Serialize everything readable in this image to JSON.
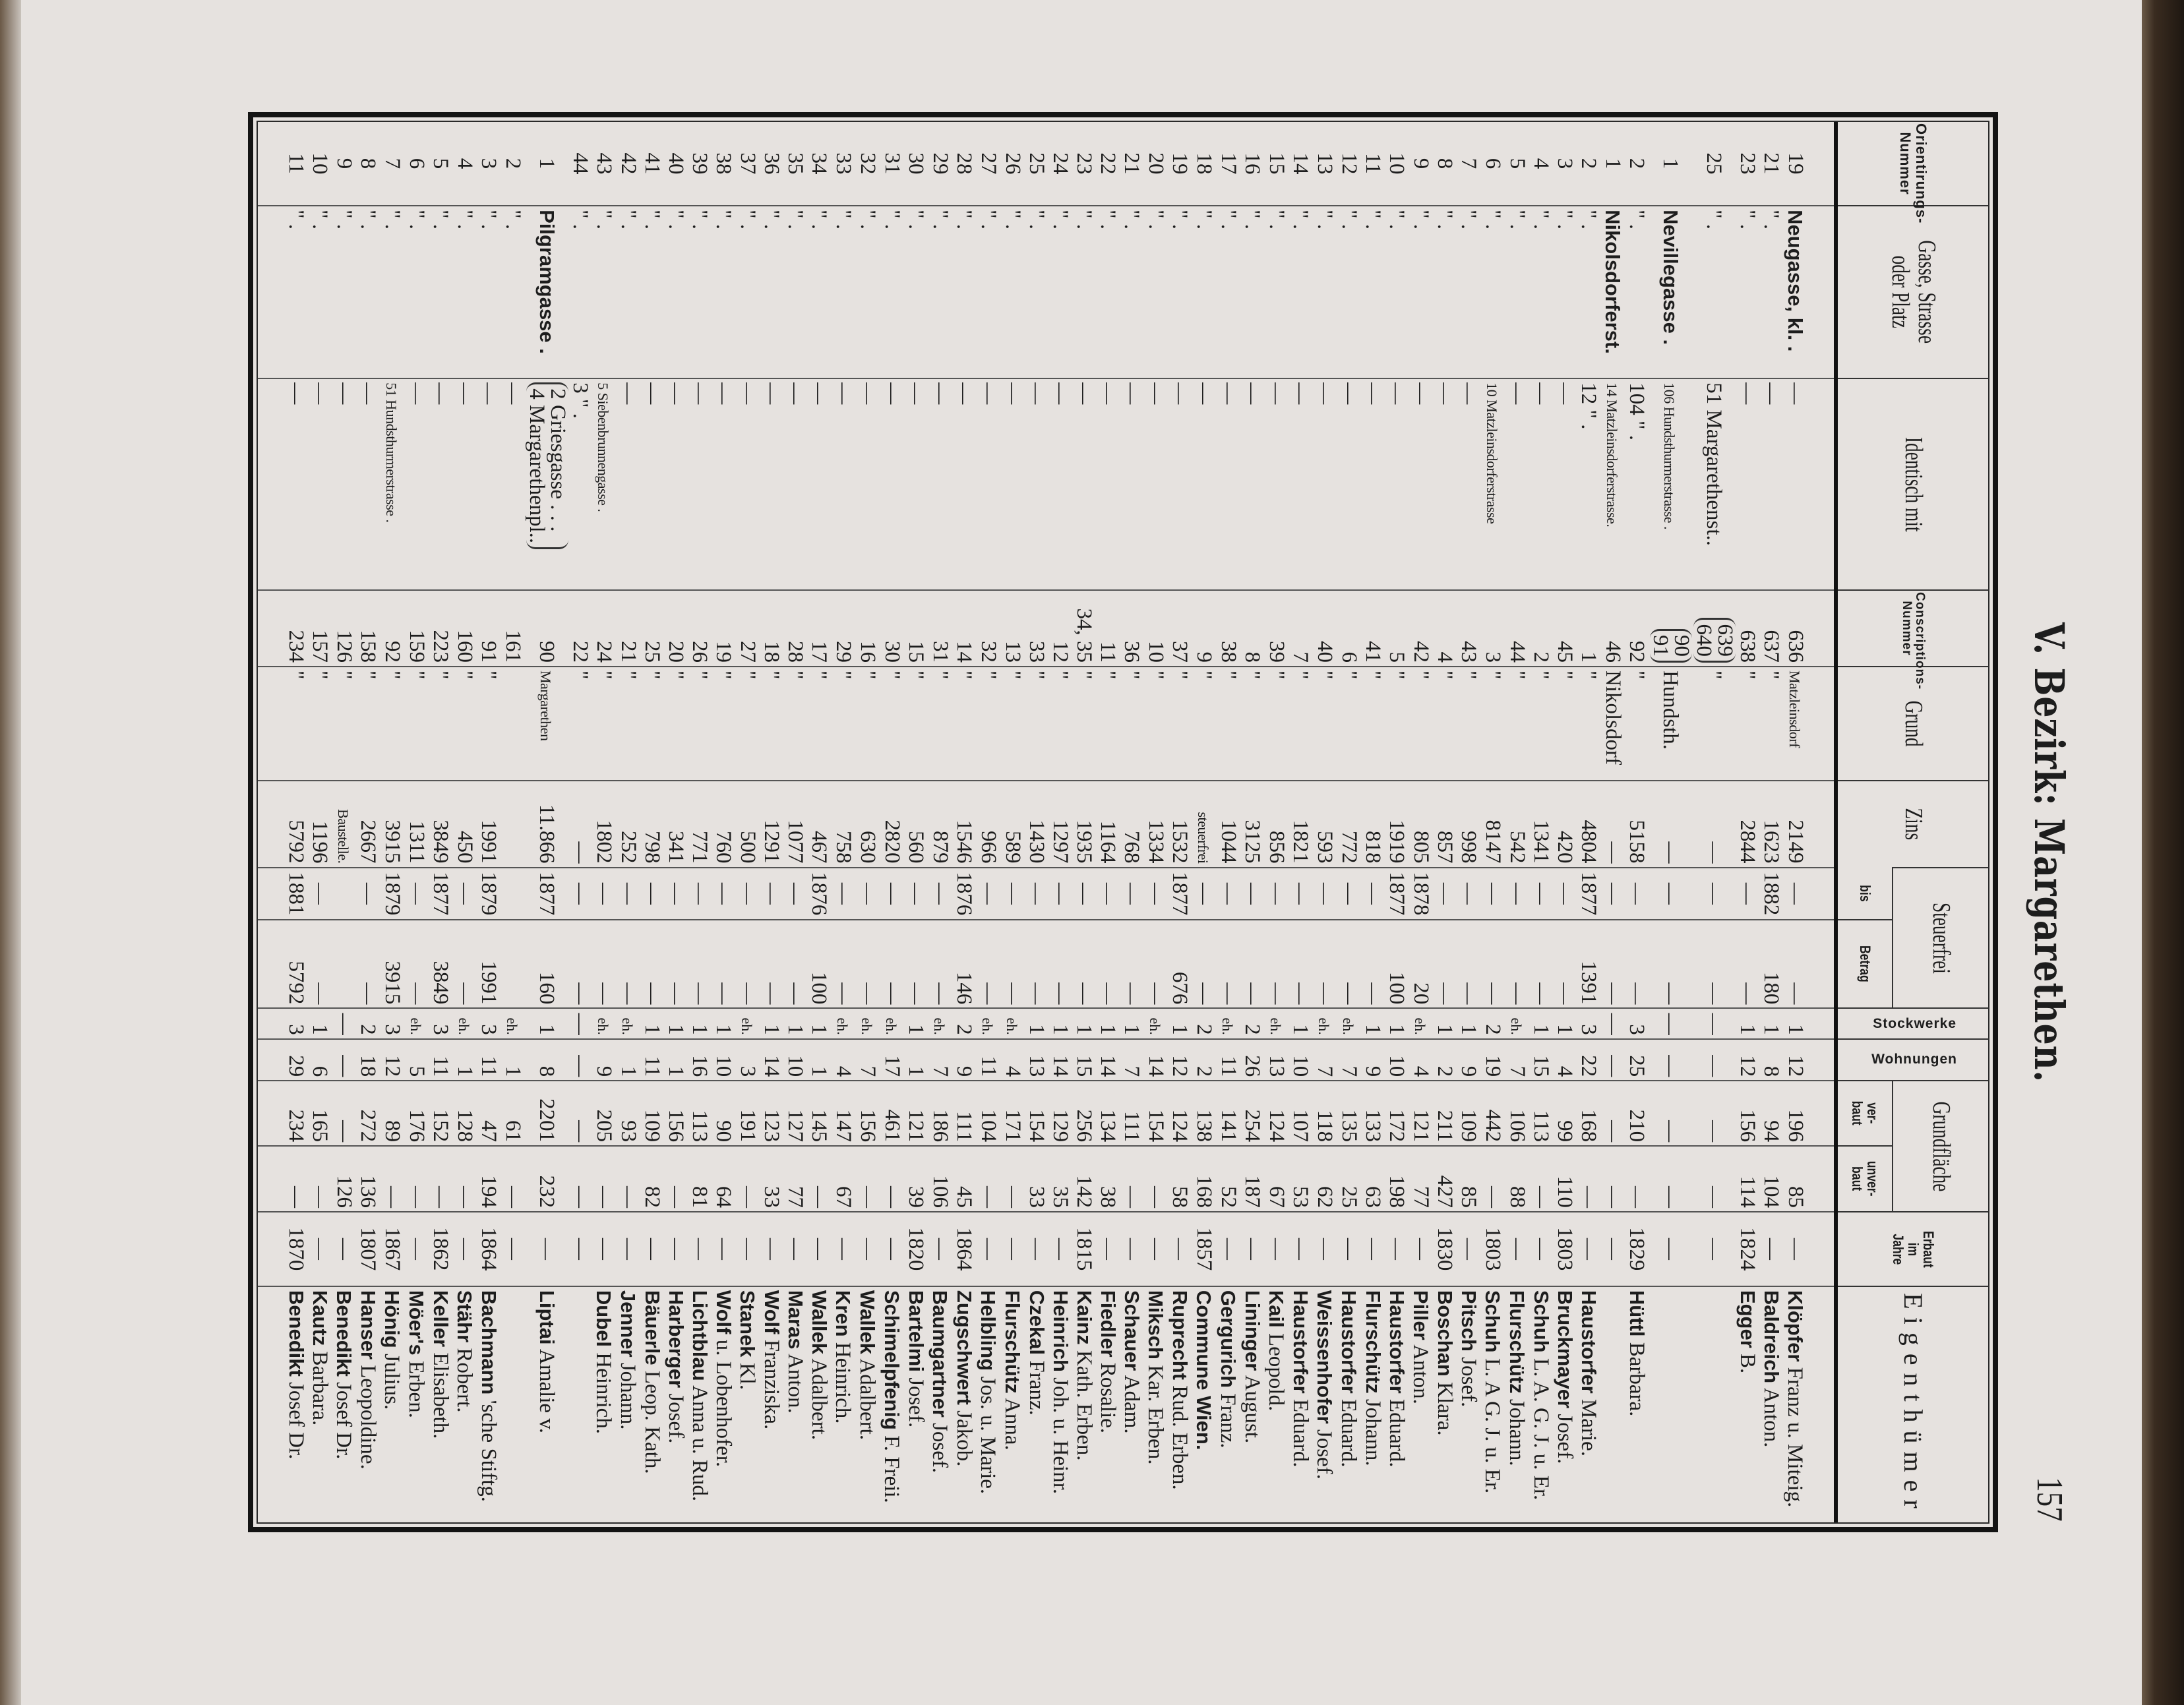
{
  "title": "V. Bezirk: Margarethen.",
  "page_number": "157",
  "header": {
    "orient": "Orientirungs-\nNummer",
    "gasse": "Gasse, Strasse\noder Platz",
    "identisch": "Identisch mit",
    "conscr": "Conscriptions-\nNummer",
    "grund": "Grund",
    "zins": "Zins",
    "steuerfrei": "Steuerfrei",
    "bis": "bis",
    "betrag": "Betrag",
    "stockwerke": "Stockwerke",
    "wohnungen": "Wohnungen",
    "grundflaeche": "Grundfläche",
    "verbaut": "ver-\nbaut",
    "unverbaut": "unver-\nbaut",
    "erbaut": "Erbaut\nim\nJahre",
    "eigenthuemer": "Eigenthümer"
  },
  "rows": [
    [
      "19",
      "Neugasse, kl. .",
      "—",
      "636",
      "Matzleinsdorf",
      "2149",
      "—",
      "—",
      "1",
      "12",
      "196",
      "85",
      "—",
      "Klöpfer",
      "Franz u. Miteig."
    ],
    [
      "21",
      "\" .",
      "—",
      "637",
      "\"",
      "1623",
      "1882",
      "180",
      "1",
      "8",
      "94",
      "104",
      "—",
      "Baldreich",
      "Anton."
    ],
    [
      "23",
      "\" .",
      "—",
      "638",
      "\"",
      "2844",
      "—",
      "—",
      "1",
      "12",
      "156",
      "114",
      "1824",
      "Egger",
      "B."
    ],
    [
      "25",
      "\" .",
      "51 Margarethenst..",
      [
        "639",
        "640"
      ],
      "\"",
      "—",
      "—",
      "—",
      "—",
      "—",
      "—",
      "—",
      "—",
      "",
      ""
    ],
    [
      "1",
      "Nevillegasse .",
      "106 Hundsthurmerstrasse .",
      [
        "90",
        "91"
      ],
      "Hundsth.",
      "—",
      "—",
      "—",
      "—",
      "—",
      "—",
      "—",
      "—",
      "",
      ""
    ],
    [
      "2",
      "\" .",
      "104 \" .",
      "92",
      "\"",
      "5158",
      "—",
      "—",
      "3",
      "25",
      "210",
      "—",
      "1829",
      "Hüttl",
      "Barbara."
    ],
    [
      "1",
      "Nikolsdorferst.",
      "14 Matzleinsdorferstrasse.",
      "46",
      "Nikolsdorf",
      "—",
      "—",
      "—",
      "—",
      "—",
      "—",
      "—",
      "—",
      "",
      ""
    ],
    [
      "2",
      "\" .",
      "12 \" .",
      "1",
      "\"",
      "4804",
      "1877",
      "1391",
      "3",
      "22",
      "168",
      "—",
      "—",
      "Haustorfer",
      "Marie."
    ],
    [
      "3",
      "\" .",
      "—",
      "45",
      "\"",
      "420",
      "—",
      "—",
      "1",
      "4",
      "99",
      "110",
      "1803",
      "Bruckmayer",
      "Josef."
    ],
    [
      "4",
      "\" .",
      "—",
      "2",
      "\"",
      "1341",
      "—",
      "—",
      "1",
      "15",
      "113",
      "—",
      "—",
      "Schuh",
      "L. A. G. J. u. Er."
    ],
    [
      "5",
      "\" .",
      "—",
      "44",
      "\"",
      "542",
      "—",
      "—",
      "eh.",
      "7",
      "106",
      "88",
      "—",
      "Flurschütz",
      "Johann."
    ],
    [
      "6",
      "\" .",
      "10 Matzleinsdorferstrasse",
      "3",
      "\"",
      "8147",
      "—",
      "—",
      "2",
      "19",
      "442",
      "—",
      "1803",
      "Schuh",
      "L. A G. J. u. Er."
    ],
    [
      "7",
      "\" .",
      "—",
      "43",
      "\"",
      "998",
      "—",
      "—",
      "1",
      "9",
      "109",
      "85",
      "—",
      "Pitsch",
      "Josef."
    ],
    [
      "8",
      "\" .",
      "—",
      "4",
      "\"",
      "857",
      "—",
      "—",
      "1",
      "2",
      "211",
      "427",
      "1830",
      "Boschan",
      "Klara."
    ],
    [
      "9",
      "\" .",
      "—",
      "42",
      "\"",
      "805",
      "1878",
      "20",
      "eh.",
      "4",
      "121",
      "77",
      "—",
      "Piller",
      "Anton."
    ],
    [
      "10",
      "\" .",
      "—",
      "5",
      "\"",
      "1919",
      "1877",
      "100",
      "1",
      "10",
      "172",
      "198",
      "—",
      "Haustorfer",
      "Eduard."
    ],
    [
      "11",
      "\" .",
      "—",
      "41",
      "\"",
      "818",
      "—",
      "—",
      "1",
      "9",
      "133",
      "63",
      "—",
      "Flurschütz",
      "Johann."
    ],
    [
      "12",
      "\" .",
      "—",
      "6",
      "\"",
      "772",
      "—",
      "—",
      "eh.",
      "7",
      "135",
      "25",
      "—",
      "Haustorfer",
      "Eduard."
    ],
    [
      "13",
      "\" .",
      "—",
      "40",
      "\"",
      "593",
      "—",
      "—",
      "eh.",
      "7",
      "118",
      "62",
      "—",
      "Weissenhofer",
      "Josef."
    ],
    [
      "14",
      "\" .",
      "—",
      "7",
      "\"",
      "1821",
      "—",
      "—",
      "1",
      "10",
      "107",
      "53",
      "—",
      "Haustorfer",
      "Eduard."
    ],
    [
      "15",
      "\" .",
      "—",
      "39",
      "\"",
      "856",
      "—",
      "—",
      "eh.",
      "13",
      "124",
      "67",
      "—",
      "Kail",
      "Leopold."
    ],
    [
      "16",
      "\" .",
      "—",
      "8",
      "\"",
      "3125",
      "—",
      "—",
      "2",
      "26",
      "254",
      "187",
      "—",
      "Lininger",
      "August."
    ],
    [
      "17",
      "\" .",
      "—",
      "38",
      "\"",
      "1044",
      "—",
      "—",
      "eh.",
      "11",
      "141",
      "52",
      "—",
      "Gergurich",
      "Franz."
    ],
    [
      "18",
      "\" .",
      "—",
      "9",
      "\"",
      "steuerfrei",
      "—",
      "—",
      "2",
      "2",
      "138",
      "168",
      "1857",
      "Commune Wien.",
      ""
    ],
    [
      "19",
      "\" .",
      "—",
      "37",
      "\"",
      "1532",
      "1877",
      "676",
      "1",
      "12",
      "124",
      "58",
      "—",
      "Ruprecht",
      "Rud. Erben."
    ],
    [
      "20",
      "\" .",
      "—",
      "10",
      "\"",
      "1334",
      "—",
      "—",
      "eh.",
      "14",
      "154",
      "—",
      "—",
      "Miksch",
      "Kar. Erben."
    ],
    [
      "21",
      "\" .",
      "—",
      "36",
      "\"",
      "768",
      "—",
      "—",
      "1",
      "7",
      "111",
      "—",
      "—",
      "Schauer",
      "Adam."
    ],
    [
      "22",
      "\" .",
      "—",
      "11",
      "\"",
      "1164",
      "—",
      "—",
      "1",
      "14",
      "134",
      "38",
      "—",
      "Fiedler",
      "Rosalie."
    ],
    [
      "23",
      "\" .",
      "—",
      "34, 35",
      "\"",
      "1935",
      "—",
      "—",
      "1",
      "15",
      "256",
      "142",
      "1815",
      "Kainz",
      "Kath. Erben."
    ],
    [
      "24",
      "\" .",
      "—",
      "12",
      "\"",
      "1297",
      "—",
      "—",
      "1",
      "14",
      "129",
      "35",
      "—",
      "Heinrich",
      "Joh. u. Heinr."
    ],
    [
      "25",
      "\" .",
      "—",
      "33",
      "\"",
      "1430",
      "—",
      "—",
      "1",
      "13",
      "154",
      "33",
      "—",
      "Czekal",
      "Franz."
    ],
    [
      "26",
      "\" .",
      "—",
      "13",
      "\"",
      "589",
      "—",
      "—",
      "eh.",
      "4",
      "171",
      "—",
      "—",
      "Flurschütz",
      "Anna."
    ],
    [
      "27",
      "\" .",
      "—",
      "32",
      "\"",
      "966",
      "—",
      "—",
      "eh.",
      "11",
      "104",
      "—",
      "—",
      "Helbling",
      "Jos. u. Marie."
    ],
    [
      "28",
      "\" .",
      "—",
      "14",
      "\"",
      "1546",
      "1876",
      "146",
      "2",
      "9",
      "111",
      "45",
      "1864",
      "Zugschwert",
      "Jakob."
    ],
    [
      "29",
      "\" .",
      "—",
      "31",
      "\"",
      "879",
      "—",
      "—",
      "eh.",
      "7",
      "186",
      "106",
      "—",
      "Baumgartner",
      "Josef."
    ],
    [
      "30",
      "\" .",
      "—",
      "15",
      "\"",
      "560",
      "—",
      "—",
      "1",
      "1",
      "121",
      "39",
      "1820",
      "Bartelmi",
      "Josef."
    ],
    [
      "31",
      "\" .",
      "—",
      "30",
      "\"",
      "2820",
      "—",
      "—",
      "eh.",
      "17",
      "461",
      "—",
      "—",
      "Schimelpfenig",
      "F. Freii."
    ],
    [
      "32",
      "\" .",
      "—",
      "16",
      "\"",
      "630",
      "—",
      "—",
      "eh.",
      "7",
      "156",
      "—",
      "—",
      "Wallek",
      "Adalbert."
    ],
    [
      "33",
      "\" .",
      "—",
      "29",
      "\"",
      "758",
      "—",
      "—",
      "eh.",
      "4",
      "147",
      "67",
      "—",
      "Kren",
      "Heinrich."
    ],
    [
      "34",
      "\" .",
      "—",
      "17",
      "\"",
      "467",
      "1876",
      "100",
      "1",
      "1",
      "145",
      "—",
      "—",
      "Wallek",
      "Adalbert."
    ],
    [
      "35",
      "\" .",
      "—",
      "28",
      "\"",
      "1077",
      "—",
      "—",
      "1",
      "10",
      "127",
      "77",
      "—",
      "Maras",
      "Anton."
    ],
    [
      "36",
      "\" .",
      "—",
      "18",
      "\"",
      "1291",
      "—",
      "—",
      "1",
      "14",
      "123",
      "33",
      "—",
      "Wolf",
      "Franziska."
    ],
    [
      "37",
      "\" .",
      "—",
      "27",
      "\"",
      "500",
      "—",
      "—",
      "eh.",
      "3",
      "191",
      "—",
      "—",
      "Stanek",
      "Kl."
    ],
    [
      "38",
      "\" .",
      "—",
      "19",
      "\"",
      "760",
      "—",
      "—",
      "1",
      "10",
      "90",
      "64",
      "—",
      "Wolf",
      "u. Lobenhofer."
    ],
    [
      "39",
      "\" .",
      "—",
      "26",
      "\"",
      "771",
      "—",
      "—",
      "1",
      "16",
      "113",
      "81",
      "—",
      "Lichtblau",
      "Anna u. Rud."
    ],
    [
      "40",
      "\" .",
      "—",
      "20",
      "\"",
      "341",
      "—",
      "—",
      "1",
      "1",
      "156",
      "—",
      "—",
      "Harberger",
      "Josef."
    ],
    [
      "41",
      "\" .",
      "—",
      "25",
      "\"",
      "798",
      "—",
      "—",
      "1",
      "11",
      "109",
      "82",
      "—",
      "Bäuerle",
      "Leop. Kath."
    ],
    [
      "42",
      "\" .",
      "—",
      "21",
      "\"",
      "252",
      "—",
      "—",
      "eh.",
      "1",
      "93",
      "—",
      "—",
      "Jenner",
      "Johann."
    ],
    [
      "43",
      "\" .",
      "5 Siebenbrunnengasse .",
      "24",
      "\"",
      "1802",
      "—",
      "—",
      "eh.",
      "9",
      "205",
      "—",
      "—",
      "Dubel",
      "Heinrich."
    ],
    [
      "44",
      "\" .",
      "3 \" .",
      "22",
      "\"",
      "—",
      "—",
      "—",
      "—",
      "—",
      "—",
      "—",
      "—",
      "",
      ""
    ],
    [
      "1",
      "Pilgramgasse .",
      [
        "2 Griesgasse . . .",
        "4 Margarethenpl.."
      ],
      "90",
      "Margarethen",
      "11.866",
      "1877",
      "160",
      "1",
      "8",
      "2201",
      "232",
      "—",
      "Liptai",
      "Amalie v."
    ],
    [
      "2",
      "\" .",
      "—",
      "161",
      "",
      "",
      "",
      "",
      "eh.",
      "1",
      "61",
      "—",
      "—",
      "",
      ""
    ],
    [
      "3",
      "\" .",
      "—",
      "91",
      "\"",
      "1991",
      "1879",
      "1991",
      "3",
      "11",
      "47",
      "194",
      "1864",
      "Bachmann",
      "'sche Stiftg."
    ],
    [
      "4",
      "\" .",
      "—",
      "160",
      "\"",
      "450",
      "—",
      "—",
      "eh.",
      "1",
      "128",
      "—",
      "—",
      "Stähr",
      "Robert."
    ],
    [
      "5",
      "\" .",
      "—",
      "223",
      "\"",
      "3849",
      "1877",
      "3849",
      "3",
      "11",
      "152",
      "—",
      "1862",
      "Keller",
      "Elisabeth."
    ],
    [
      "6",
      "\" .",
      "—",
      "159",
      "\"",
      "1311",
      "—",
      "—",
      "eh.",
      "5",
      "176",
      "—",
      "—",
      "Möer's",
      "Erben."
    ],
    [
      "7",
      "\" .",
      "51 Hundsthurmerstrasse .",
      "92",
      "\"",
      "3915",
      "1879",
      "3915",
      "3",
      "12",
      "89",
      "—",
      "1867",
      "Hönig",
      "Julius."
    ],
    [
      "8",
      "\" .",
      "—",
      "158",
      "\"",
      "2667",
      "—",
      "—",
      "2",
      "18",
      "272",
      "136",
      "1807",
      "Hanser",
      "Leopoldine."
    ],
    [
      "9",
      "\" .",
      "—",
      "126",
      "\"",
      "Baustelle.",
      "",
      "",
      "—",
      "—",
      "—",
      "126",
      "—",
      "Benedikt",
      "Josef Dr."
    ],
    [
      "10",
      "\" .",
      "—",
      "157",
      "\"",
      "1196",
      "—",
      "—",
      "1",
      "6",
      "165",
      "—",
      "—",
      "Kautz",
      "Barbara."
    ],
    [
      "11",
      "\" .",
      "—",
      "234",
      "\"",
      "5792",
      "1881",
      "5792",
      "3",
      "29",
      "234",
      "—",
      "1870",
      "Benedikt",
      "Josef Dr."
    ]
  ]
}
